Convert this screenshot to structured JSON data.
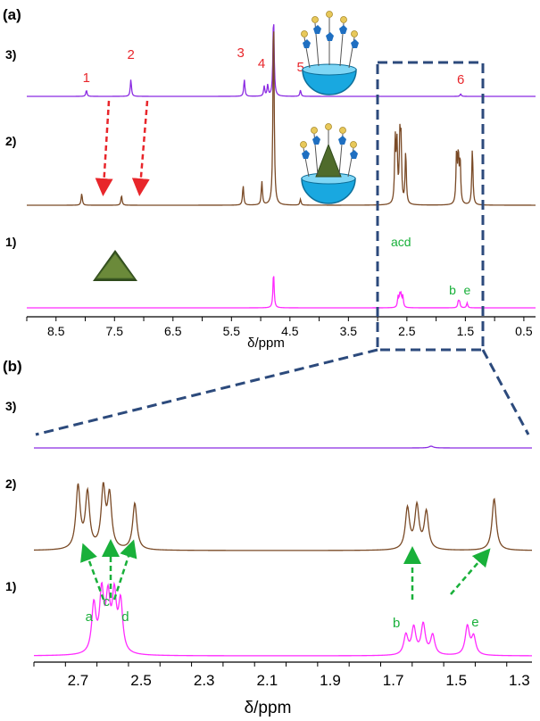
{
  "colors": {
    "trace3": "#8b2be2",
    "trace2": "#7a4a26",
    "trace1": "#ff2bff",
    "red_label": "#e8262b",
    "green_label": "#19b03a",
    "box": "#2c4a7c",
    "axis": "#000000",
    "bowl": "#19a8e0",
    "guest": "#4f6b2b",
    "pentagon": "#1f6fc1",
    "bead": "#e8c85a"
  },
  "panel_labels": {
    "a": "(a)",
    "b": "(b)"
  },
  "trace_labels": [
    "3)",
    "2)",
    "1)"
  ],
  "chart_data": [
    {
      "type": "line",
      "panel": "(a)",
      "title": "",
      "xlabel": "δ/ppm",
      "ylabel": "",
      "xlim": [
        9.0,
        0.3
      ],
      "x_reversed": true,
      "xticks": [
        8.5,
        7.5,
        6.5,
        5.5,
        4.5,
        3.5,
        2.5,
        1.5,
        0.5
      ],
      "xtick_labels": [
        "8.5",
        "7.5",
        "6.5",
        "5.5",
        "4.5",
        "3.5",
        "2.5",
        "1.5",
        "0.5"
      ],
      "series": [
        {
          "name": "3)",
          "peaks": [
            {
              "x": 7.98,
              "height": 0.1
            },
            {
              "x": 7.22,
              "height": 0.27
            },
            {
              "x": 5.28,
              "height": 0.27
            },
            {
              "x": 4.94,
              "height": 0.16
            },
            {
              "x": 4.88,
              "height": 0.18
            },
            {
              "x": 4.78,
              "height": 1.3
            },
            {
              "x": 4.32,
              "height": 0.1
            },
            {
              "x": 1.58,
              "height": 0.04
            }
          ],
          "annotations": [
            {
              "label": "1",
              "x": 7.98
            },
            {
              "label": "2",
              "x": 7.22
            },
            {
              "label": "3",
              "x": 5.28
            },
            {
              "label": "4",
              "x": 4.94
            },
            {
              "label": "5",
              "x": 4.32
            },
            {
              "label": "6",
              "x": 1.58
            }
          ]
        },
        {
          "name": "2)",
          "peaks": [
            {
              "x": 8.06,
              "height": 0.06
            },
            {
              "x": 7.38,
              "height": 0.05
            },
            {
              "x": 5.3,
              "height": 0.1
            },
            {
              "x": 4.98,
              "height": 0.12
            },
            {
              "x": 4.78,
              "height": 1.0
            },
            {
              "x": 4.32,
              "height": 0.03
            },
            {
              "x": 2.7,
              "height": 0.33
            },
            {
              "x": 2.67,
              "height": 0.3
            },
            {
              "x": 2.62,
              "height": 0.31
            },
            {
              "x": 2.6,
              "height": 0.29
            },
            {
              "x": 2.52,
              "height": 0.27
            },
            {
              "x": 1.65,
              "height": 0.26
            },
            {
              "x": 1.62,
              "height": 0.24
            },
            {
              "x": 1.59,
              "height": 0.22
            },
            {
              "x": 1.38,
              "height": 0.29
            }
          ]
        },
        {
          "name": "1)",
          "peaks": [
            {
              "x": 4.78,
              "height": 1.0
            },
            {
              "x": 2.65,
              "height": 0.3
            },
            {
              "x": 2.62,
              "height": 0.32
            },
            {
              "x": 2.6,
              "height": 0.29
            },
            {
              "x": 2.57,
              "height": 0.32
            },
            {
              "x": 1.62,
              "height": 0.18
            },
            {
              "x": 1.6,
              "height": 0.16
            },
            {
              "x": 1.47,
              "height": 0.14
            }
          ],
          "annotations": [
            {
              "label": "acd",
              "x": 2.6
            },
            {
              "label": "b",
              "x": 1.72
            },
            {
              "label": "e",
              "x": 1.47
            }
          ]
        }
      ]
    },
    {
      "type": "line",
      "panel": "(b)",
      "title": "",
      "xlabel": "δ/ppm",
      "ylabel": "",
      "xlim": [
        2.84,
        1.26
      ],
      "x_reversed": true,
      "xticks": [
        2.7,
        2.5,
        2.3,
        2.1,
        1.9,
        1.7,
        1.5,
        1.3
      ],
      "xtick_labels": [
        "2.7",
        "2.5",
        "2.3",
        "2.1",
        "1.9",
        "1.7",
        "1.5",
        "1.3"
      ],
      "series": [
        {
          "name": "3)",
          "peaks": [
            {
              "x": 1.58,
              "height": 0.05
            }
          ]
        },
        {
          "name": "2)",
          "peaks": [
            {
              "x": 2.7,
              "height": 0.7
            },
            {
              "x": 2.67,
              "height": 0.62
            },
            {
              "x": 2.62,
              "height": 0.66
            },
            {
              "x": 2.6,
              "height": 0.58
            },
            {
              "x": 2.52,
              "height": 0.52
            },
            {
              "x": 1.655,
              "height": 0.46
            },
            {
              "x": 1.625,
              "height": 0.48
            },
            {
              "x": 1.595,
              "height": 0.42
            },
            {
              "x": 1.38,
              "height": 0.58
            }
          ]
        },
        {
          "name": "1)",
          "peaks": [
            {
              "x": 2.65,
              "height": 0.54
            },
            {
              "x": 2.625,
              "height": 0.66
            },
            {
              "x": 2.605,
              "height": 0.58
            },
            {
              "x": 2.585,
              "height": 0.62
            },
            {
              "x": 2.565,
              "height": 0.56
            },
            {
              "x": 1.66,
              "height": 0.22
            },
            {
              "x": 1.635,
              "height": 0.3
            },
            {
              "x": 1.605,
              "height": 0.34
            },
            {
              "x": 1.575,
              "height": 0.22
            },
            {
              "x": 1.465,
              "height": 0.32
            },
            {
              "x": 1.445,
              "height": 0.2
            }
          ],
          "annotations": [
            {
              "label": "a",
              "x": 2.665
            },
            {
              "label": "c",
              "x": 2.61
            },
            {
              "label": "d",
              "x": 2.55
            },
            {
              "label": "b",
              "x": 1.69
            },
            {
              "label": "e",
              "x": 1.44
            }
          ]
        }
      ]
    }
  ]
}
